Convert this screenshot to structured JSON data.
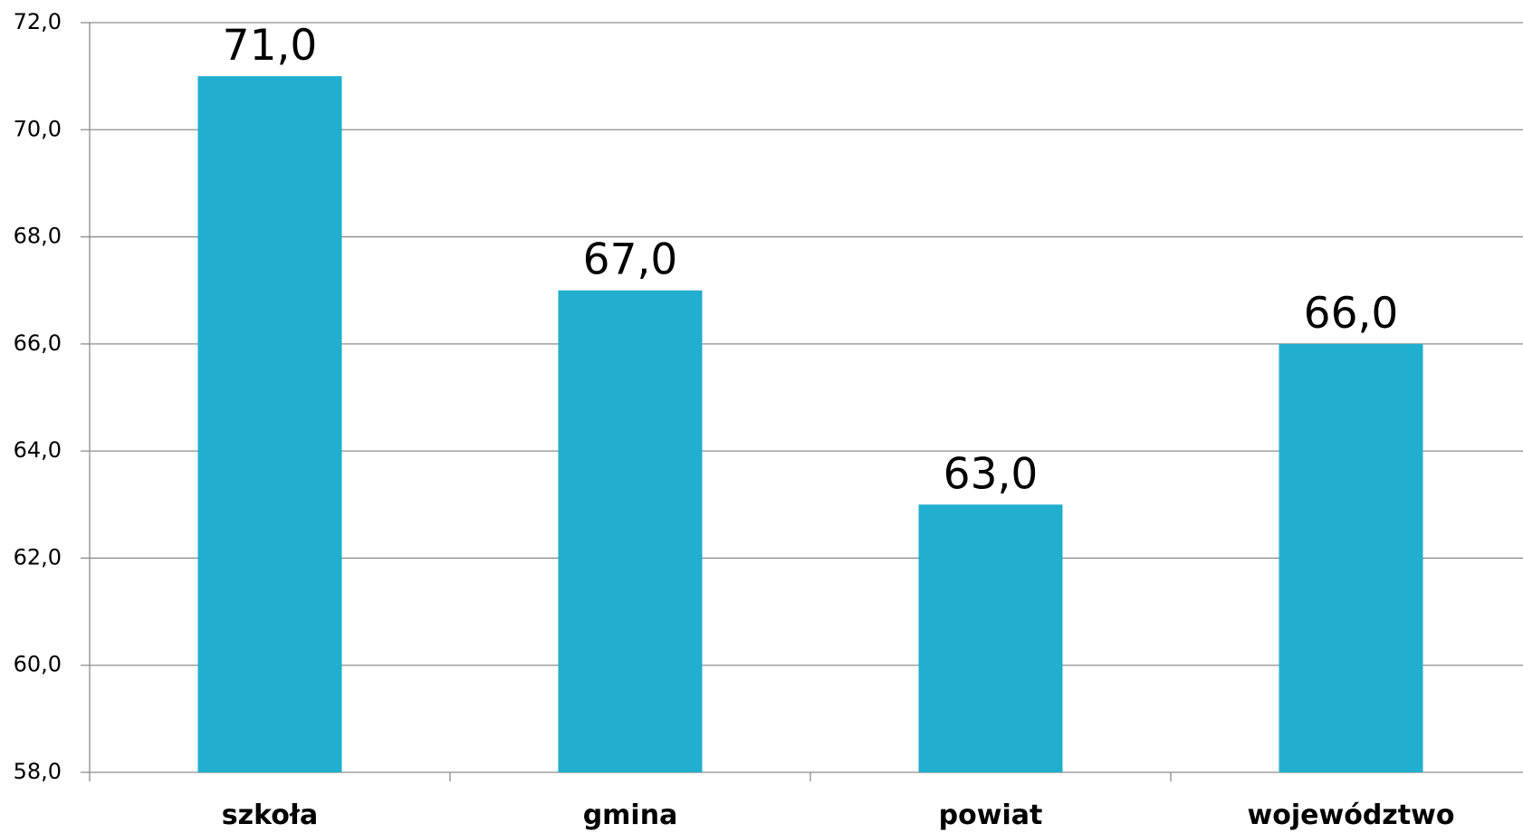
{
  "chart_data": {
    "type": "bar",
    "categories": [
      "szkoła",
      "gmina",
      "powiat",
      "województwo"
    ],
    "values": [
      71.0,
      67.0,
      63.0,
      66.0
    ],
    "data_labels": [
      "71,0",
      "67,0",
      "63,0",
      "66,0"
    ],
    "ylim": [
      58.0,
      72.0
    ],
    "yticks": [
      58.0,
      60.0,
      62.0,
      64.0,
      66.0,
      68.0,
      70.0,
      72.0
    ],
    "ytick_labels": [
      "58,0",
      "60,0",
      "62,0",
      "64,0",
      "66,0",
      "68,0",
      "70,0",
      "72,0"
    ],
    "title": "",
    "xlabel": "",
    "ylabel": "",
    "grid": true,
    "legend": "none",
    "bar_color": "#21AECF"
  }
}
